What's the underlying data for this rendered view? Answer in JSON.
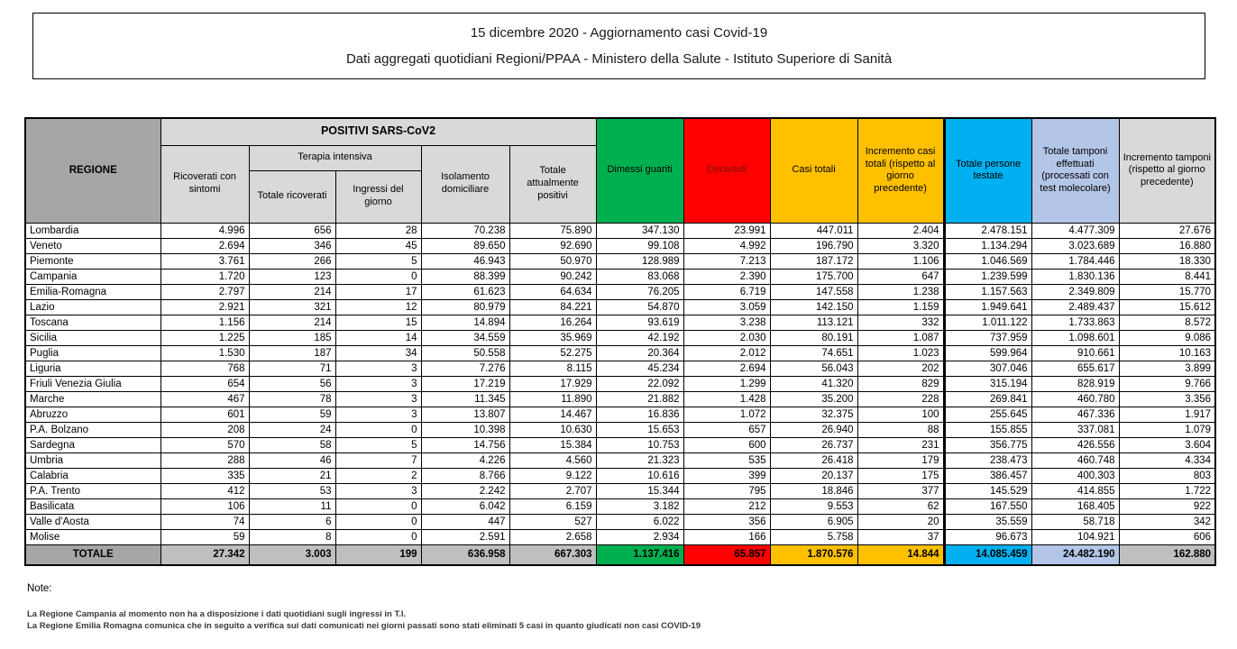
{
  "title": {
    "line1": "15 dicembre 2020 - Aggiornamento casi Covid-19",
    "line2": "Dati aggregati quotidiani Regioni/PPAA - Ministero della Salute - Istituto Superiore di Sanità"
  },
  "table": {
    "headers": {
      "regione": "REGIONE",
      "positivi_group": "POSITIVI SARS-CoV2",
      "ricoverati_sintomi": "Ricoverati con sintomi",
      "terapia_group": "Terapia intensiva",
      "terapia_totale": "Totale ricoverati",
      "terapia_ingressi": "Ingressi del giorno",
      "isolamento": "Isolamento domiciliare",
      "attualmente_positivi": "Totale attualmente positivi",
      "dimessi": "Dimessi guariti",
      "deceduti": "Deceduti",
      "casi_totali": "Casi totali",
      "incremento_casi": "Incremento casi totali (rispetto al giorno precedente)",
      "persone_testate": "Totale persone testate",
      "tamponi": "Totale tamponi effettuati (processati con test molecolare)",
      "incremento_tamponi": "Incremento tamponi (rispetto al giorno precedente)"
    },
    "colors": {
      "green": "#00B050",
      "red": "#FF0000",
      "amber": "#FFC000",
      "blue": "#00B0F0",
      "light_blue": "#B4C6E7",
      "light_gray": "#D9D9D9",
      "header_gray": "#A6A6A6",
      "total_gray": "#BFBFBF"
    },
    "rows": [
      [
        "Lombardia",
        "4.996",
        "656",
        "28",
        "70.238",
        "75.890",
        "347.130",
        "23.991",
        "447.011",
        "2.404",
        "2.478.151",
        "4.477.309",
        "27.676"
      ],
      [
        "Veneto",
        "2.694",
        "346",
        "45",
        "89.650",
        "92.690",
        "99.108",
        "4.992",
        "196.790",
        "3.320",
        "1.134.294",
        "3.023.689",
        "16.880"
      ],
      [
        "Piemonte",
        "3.761",
        "266",
        "5",
        "46.943",
        "50.970",
        "128.989",
        "7.213",
        "187.172",
        "1.106",
        "1.046.569",
        "1.784.446",
        "18.330"
      ],
      [
        "Campania",
        "1.720",
        "123",
        "0",
        "88.399",
        "90.242",
        "83.068",
        "2.390",
        "175.700",
        "647",
        "1.239.599",
        "1.830.136",
        "8.441"
      ],
      [
        "Emilia-Romagna",
        "2.797",
        "214",
        "17",
        "61.623",
        "64.634",
        "76.205",
        "6.719",
        "147.558",
        "1.238",
        "1.157.563",
        "2.349.809",
        "15.770"
      ],
      [
        "Lazio",
        "2.921",
        "321",
        "12",
        "80.979",
        "84.221",
        "54.870",
        "3.059",
        "142.150",
        "1.159",
        "1.949.641",
        "2.489.437",
        "15.612"
      ],
      [
        "Toscana",
        "1.156",
        "214",
        "15",
        "14.894",
        "16.264",
        "93.619",
        "3.238",
        "113.121",
        "332",
        "1.011.122",
        "1.733.863",
        "8.572"
      ],
      [
        "Sicilia",
        "1.225",
        "185",
        "14",
        "34.559",
        "35.969",
        "42.192",
        "2.030",
        "80.191",
        "1.087",
        "737.959",
        "1.098.601",
        "9.086"
      ],
      [
        "Puglia",
        "1.530",
        "187",
        "34",
        "50.558",
        "52.275",
        "20.364",
        "2.012",
        "74.651",
        "1.023",
        "599.964",
        "910.661",
        "10.163"
      ],
      [
        "Liguria",
        "768",
        "71",
        "3",
        "7.276",
        "8.115",
        "45.234",
        "2.694",
        "56.043",
        "202",
        "307.046",
        "655.617",
        "3.899"
      ],
      [
        "Friuli Venezia Giulia",
        "654",
        "56",
        "3",
        "17.219",
        "17.929",
        "22.092",
        "1.299",
        "41.320",
        "829",
        "315.194",
        "828.919",
        "9.766"
      ],
      [
        "Marche",
        "467",
        "78",
        "3",
        "11.345",
        "11.890",
        "21.882",
        "1.428",
        "35.200",
        "228",
        "269.841",
        "460.780",
        "3.356"
      ],
      [
        "Abruzzo",
        "601",
        "59",
        "3",
        "13.807",
        "14.467",
        "16.836",
        "1.072",
        "32.375",
        "100",
        "255.645",
        "467.336",
        "1.917"
      ],
      [
        "P.A. Bolzano",
        "208",
        "24",
        "0",
        "10.398",
        "10.630",
        "15.653",
        "657",
        "26.940",
        "88",
        "155.855",
        "337.081",
        "1.079"
      ],
      [
        "Sardegna",
        "570",
        "58",
        "5",
        "14.756",
        "15.384",
        "10.753",
        "600",
        "26.737",
        "231",
        "356.775",
        "426.556",
        "3.604"
      ],
      [
        "Umbria",
        "288",
        "46",
        "7",
        "4.226",
        "4.560",
        "21.323",
        "535",
        "26.418",
        "179",
        "238.473",
        "460.748",
        "4.334"
      ],
      [
        "Calabria",
        "335",
        "21",
        "2",
        "8.766",
        "9.122",
        "10.616",
        "399",
        "20.137",
        "175",
        "386.457",
        "400.303",
        "803"
      ],
      [
        "P.A. Trento",
        "412",
        "53",
        "3",
        "2.242",
        "2.707",
        "15.344",
        "795",
        "18.846",
        "377",
        "145.529",
        "414.855",
        "1.722"
      ],
      [
        "Basilicata",
        "106",
        "11",
        "0",
        "6.042",
        "6.159",
        "3.182",
        "212",
        "9.553",
        "62",
        "167.550",
        "168.405",
        "922"
      ],
      [
        "Valle d'Aosta",
        "74",
        "6",
        "0",
        "447",
        "527",
        "6.022",
        "356",
        "6.905",
        "20",
        "35.559",
        "58.718",
        "342"
      ],
      [
        "Molise",
        "59",
        "8",
        "0",
        "2.591",
        "2.658",
        "2.934",
        "166",
        "5.758",
        "37",
        "96.673",
        "104.921",
        "606"
      ]
    ],
    "total_row": [
      "TOTALE",
      "27.342",
      "3.003",
      "199",
      "636.958",
      "667.303",
      "1.137.416",
      "65.857",
      "1.870.576",
      "14.844",
      "14.085.459",
      "24.482.190",
      "162.880"
    ]
  },
  "notes": {
    "heading": "Note:",
    "lines": [
      "La Regione Campania al momento non ha a disposizione i dati quotidiani sugli ingressi in T.I.",
      "La Regione Emilia Romagna comunica che in seguito a verifica sui dati comunicati nei giorni passati sono stati eliminati 5 casi in quanto giudicati non casi COVID-19"
    ]
  }
}
